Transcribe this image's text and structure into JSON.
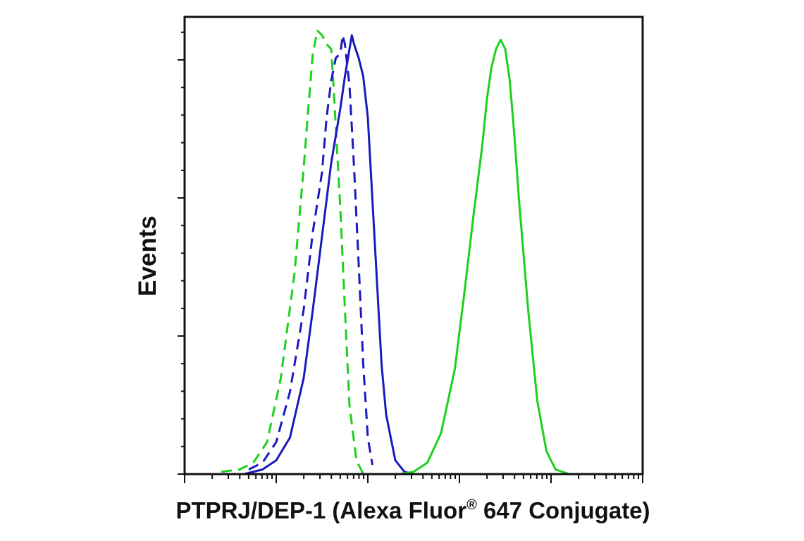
{
  "chart_data": {
    "type": "line",
    "xlabel": "PTPRJ/DEP-1 (Alexa Fluor",
    "xlabel_sup": "®",
    "xlabel_suffix": " 647 Conjugate)",
    "ylabel": "Events",
    "x_scale": "log",
    "xlim": [
      0,
      1
    ],
    "ylim": [
      0,
      1
    ],
    "grid": false,
    "legend": "none",
    "series": [
      {
        "color": "#1ed01e",
        "style": "dashed",
        "x": [
          0.08,
          0.12,
          0.15,
          0.18,
          0.21,
          0.24,
          0.26,
          0.27,
          0.28,
          0.29,
          0.3,
          0.31,
          0.32,
          0.325,
          0.33,
          0.34,
          0.35,
          0.36,
          0.375,
          0.39
        ],
        "y": [
          0.005,
          0.01,
          0.025,
          0.07,
          0.21,
          0.44,
          0.67,
          0.8,
          0.92,
          0.97,
          0.96,
          0.94,
          0.93,
          0.85,
          0.76,
          0.58,
          0.36,
          0.15,
          0.03,
          0.0
        ]
      },
      {
        "color": "#1a1abf",
        "style": "dashed",
        "x": [
          0.14,
          0.17,
          0.2,
          0.23,
          0.26,
          0.28,
          0.3,
          0.31,
          0.32,
          0.33,
          0.34,
          0.345,
          0.35,
          0.36,
          0.37,
          0.38,
          0.39,
          0.4,
          0.41
        ],
        "y": [
          0.01,
          0.025,
          0.07,
          0.18,
          0.36,
          0.53,
          0.66,
          0.78,
          0.86,
          0.91,
          0.92,
          0.96,
          0.94,
          0.85,
          0.67,
          0.46,
          0.24,
          0.08,
          0.02
        ]
      },
      {
        "color": "#1a1abf",
        "style": "solid",
        "x": [
          0.13,
          0.17,
          0.2,
          0.23,
          0.26,
          0.28,
          0.3,
          0.32,
          0.34,
          0.35,
          0.36,
          0.365,
          0.37,
          0.38,
          0.39,
          0.4,
          0.41,
          0.42,
          0.43,
          0.44,
          0.46,
          0.48,
          0.5
        ],
        "y": [
          0.0,
          0.01,
          0.03,
          0.08,
          0.21,
          0.36,
          0.52,
          0.68,
          0.8,
          0.87,
          0.93,
          0.96,
          0.94,
          0.91,
          0.87,
          0.78,
          0.6,
          0.42,
          0.24,
          0.13,
          0.03,
          0.005,
          0.0
        ]
      },
      {
        "color": "#1ed01e",
        "style": "solid",
        "x": [
          0.47,
          0.5,
          0.53,
          0.56,
          0.59,
          0.61,
          0.63,
          0.65,
          0.66,
          0.67,
          0.68,
          0.69,
          0.7,
          0.71,
          0.72,
          0.73,
          0.75,
          0.77,
          0.79,
          0.81,
          0.84,
          0.87,
          0.9
        ],
        "y": [
          0.0,
          0.005,
          0.025,
          0.09,
          0.23,
          0.39,
          0.56,
          0.72,
          0.82,
          0.89,
          0.93,
          0.95,
          0.93,
          0.86,
          0.74,
          0.6,
          0.36,
          0.16,
          0.05,
          0.01,
          0.0,
          0.0,
          0.0
        ]
      }
    ]
  }
}
